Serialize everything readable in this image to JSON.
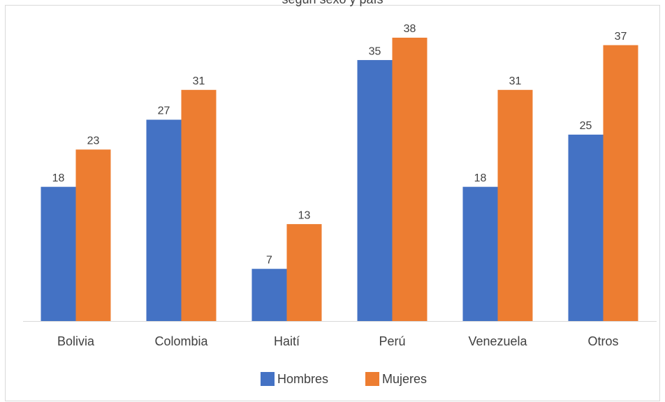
{
  "chart_data": {
    "type": "bar",
    "title": "según sexo y país",
    "categories": [
      "Bolivia",
      "Colombia",
      "Haití",
      "Perú",
      "Venezuela",
      "Otros"
    ],
    "series": [
      {
        "name": "Hombres",
        "color": "#4472c4",
        "values": [
          18,
          27,
          7,
          35,
          18,
          25
        ]
      },
      {
        "name": "Mujeres",
        "color": "#ed7d31",
        "values": [
          23,
          31,
          13,
          38,
          31,
          37
        ]
      }
    ],
    "legend": "bottom"
  }
}
